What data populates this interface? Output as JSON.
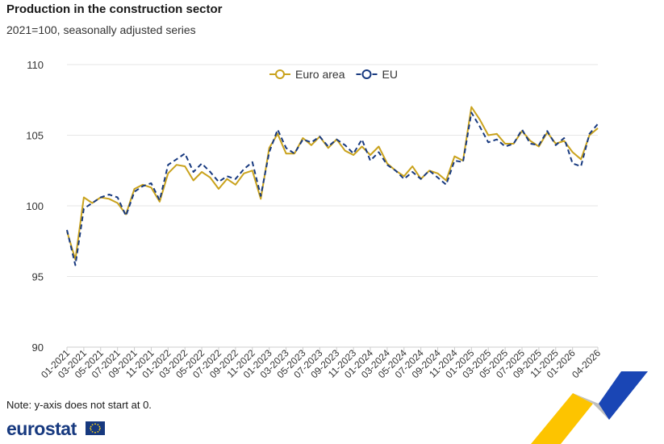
{
  "header": {
    "title": "Production in the construction sector",
    "subtitle": "2021=100, seasonally adjusted series"
  },
  "footer": {
    "note": "Note: y-axis does not start at 0.",
    "brand": "eurostat"
  },
  "colors": {
    "euro_area": "#c9a21c",
    "eu": "#17397f",
    "grid": "#e6e6e6",
    "axis_text": "#333333"
  },
  "chart_data": {
    "type": "line",
    "title": "Production in the construction sector",
    "subtitle": "2021=100, seasonally adjusted series",
    "ylim": [
      90,
      110
    ],
    "yticks": [
      90,
      95,
      100,
      105,
      110
    ],
    "grid": true,
    "legend_position": "top-center",
    "x": [
      "01-2021",
      "02-2021",
      "03-2021",
      "04-2021",
      "05-2021",
      "06-2021",
      "07-2021",
      "08-2021",
      "09-2021",
      "10-2021",
      "11-2021",
      "12-2021",
      "01-2022",
      "02-2022",
      "03-2022",
      "04-2022",
      "05-2022",
      "06-2022",
      "07-2022",
      "08-2022",
      "09-2022",
      "10-2022",
      "11-2022",
      "12-2022",
      "01-2023",
      "02-2023",
      "03-2023",
      "04-2023",
      "05-2023",
      "06-2023",
      "07-2023",
      "08-2023",
      "09-2023",
      "10-2023",
      "11-2023",
      "12-2023",
      "01-2024",
      "02-2024",
      "03-2024",
      "04-2024",
      "05-2024",
      "06-2024",
      "07-2024",
      "08-2024",
      "09-2024",
      "10-2024",
      "11-2024",
      "12-2024",
      "01-2025",
      "02-2025",
      "03-2025",
      "04-2025",
      "05-2025",
      "06-2025",
      "07-2025",
      "08-2025",
      "09-2025",
      "10-2025",
      "11-2025",
      "12-2025",
      "01-2026",
      "02-2026",
      "03-2026",
      "04-2026"
    ],
    "x_tick_labels": [
      "01-2021",
      "03-2021",
      "05-2021",
      "07-2021",
      "09-2021",
      "11-2021",
      "01-2022",
      "03-2022",
      "05-2022",
      "07-2022",
      "09-2022",
      "11-2022",
      "01-2023",
      "03-2023",
      "05-2023",
      "07-2023",
      "09-2023",
      "11-2023",
      "01-2024",
      "03-2024",
      "05-2024",
      "07-2024",
      "09-2024",
      "11-2024",
      "01-2025",
      "03-2025",
      "05-2025",
      "07-2025",
      "09-2025",
      "11-2025",
      "01-2026",
      "04-2026"
    ],
    "series": [
      {
        "name": "Euro area",
        "color": "#c9a21c",
        "style": "solid",
        "values": [
          98.2,
          96.2,
          100.6,
          100.2,
          100.6,
          100.5,
          100.2,
          99.4,
          101.2,
          101.5,
          101.3,
          100.3,
          102.3,
          102.9,
          102.8,
          101.8,
          102.4,
          102.0,
          101.2,
          101.9,
          101.5,
          102.3,
          102.5,
          100.5,
          104.1,
          105.1,
          103.7,
          103.7,
          104.8,
          104.3,
          104.9,
          104.1,
          104.7,
          103.9,
          103.6,
          104.2,
          103.6,
          104.2,
          103.0,
          102.5,
          102.1,
          102.8,
          101.9,
          102.5,
          102.3,
          101.8,
          103.5,
          103.2,
          107.0,
          106.1,
          105.0,
          105.1,
          104.4,
          104.4,
          105.3,
          104.6,
          104.2,
          105.2,
          104.4,
          104.6,
          103.8,
          103.3,
          105.0,
          105.5
        ]
      },
      {
        "name": "EU",
        "color": "#17397f",
        "style": "dashed",
        "values": [
          98.3,
          95.8,
          99.8,
          100.2,
          100.6,
          100.8,
          100.6,
          99.3,
          101.0,
          101.4,
          101.6,
          100.4,
          102.9,
          103.3,
          103.7,
          102.4,
          103.0,
          102.4,
          101.7,
          102.1,
          101.9,
          102.6,
          103.1,
          100.7,
          103.8,
          105.4,
          104.1,
          103.7,
          104.7,
          104.5,
          104.9,
          104.2,
          104.7,
          104.3,
          103.7,
          104.7,
          103.2,
          103.8,
          102.9,
          102.5,
          101.9,
          102.4,
          101.9,
          102.5,
          102.0,
          101.5,
          103.2,
          103.1,
          106.6,
          105.6,
          104.5,
          104.7,
          104.2,
          104.4,
          105.4,
          104.4,
          104.3,
          105.3,
          104.3,
          104.8,
          103.0,
          102.8,
          105.1,
          105.8
        ]
      }
    ]
  }
}
